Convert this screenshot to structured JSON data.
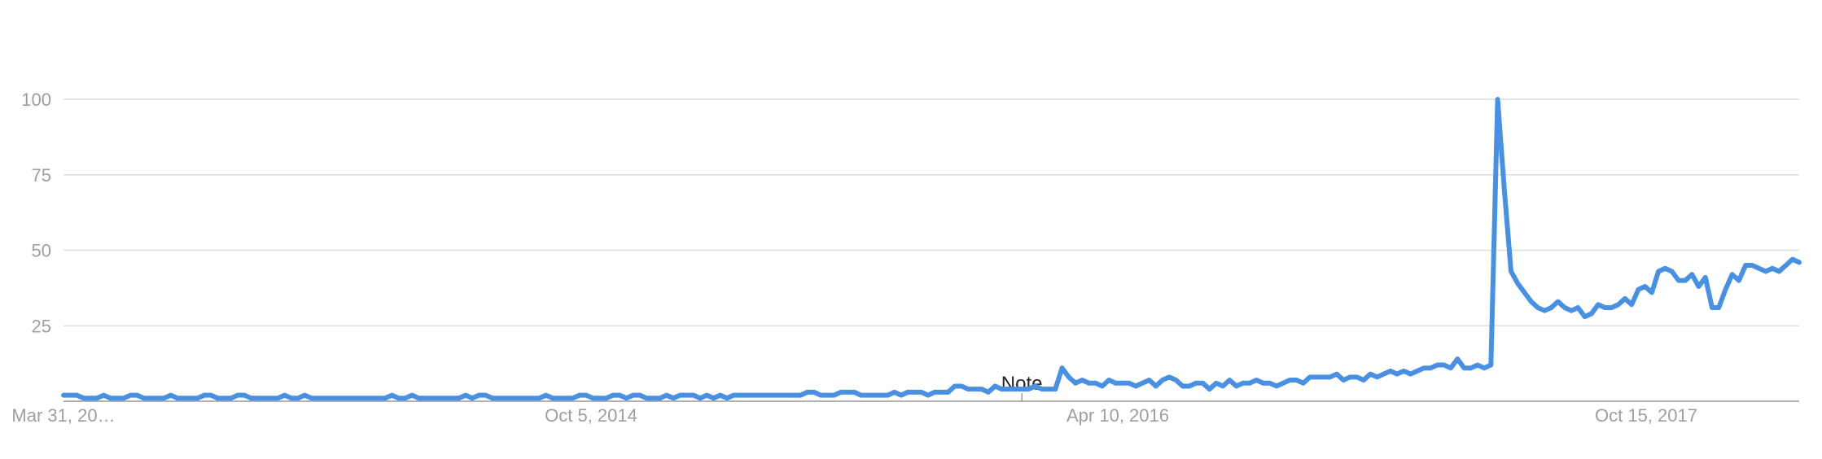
{
  "chart_data": {
    "type": "line",
    "title": "",
    "xlabel": "",
    "ylabel": "",
    "ylim": [
      0,
      100
    ],
    "y_ticks": [
      25,
      50,
      75,
      100
    ],
    "x_tick_labels": [
      "Mar 31, 20…",
      "Oct 5, 2014",
      "Apr 10, 2016",
      "Oct 15, 2017"
    ],
    "grid": true,
    "legend": "none",
    "series_color": "#4a90e2",
    "annotations": [
      {
        "label": "Note",
        "index": 143
      }
    ],
    "series": [
      {
        "values": [
          2,
          2,
          2,
          1,
          1,
          1,
          2,
          1,
          1,
          1,
          2,
          2,
          1,
          1,
          1,
          1,
          2,
          1,
          1,
          1,
          1,
          2,
          2,
          1,
          1,
          1,
          2,
          2,
          1,
          1,
          1,
          1,
          1,
          2,
          1,
          1,
          2,
          1,
          1,
          1,
          1,
          1,
          1,
          1,
          1,
          1,
          1,
          1,
          1,
          2,
          1,
          1,
          2,
          1,
          1,
          1,
          1,
          1,
          1,
          1,
          2,
          1,
          2,
          2,
          1,
          1,
          1,
          1,
          1,
          1,
          1,
          1,
          2,
          1,
          1,
          1,
          1,
          2,
          2,
          1,
          1,
          1,
          2,
          2,
          1,
          2,
          2,
          1,
          1,
          1,
          2,
          1,
          2,
          2,
          2,
          1,
          2,
          1,
          2,
          1,
          2,
          2,
          2,
          2,
          2,
          2,
          2,
          2,
          2,
          2,
          2,
          3,
          3,
          2,
          2,
          2,
          3,
          3,
          3,
          2,
          2,
          2,
          2,
          2,
          3,
          2,
          3,
          3,
          3,
          2,
          3,
          3,
          3,
          5,
          5,
          4,
          4,
          4,
          3,
          5,
          4,
          4,
          4,
          4,
          4,
          5,
          4,
          4,
          4,
          11,
          8,
          6,
          7,
          6,
          6,
          5,
          7,
          6,
          6,
          6,
          5,
          6,
          7,
          5,
          7,
          8,
          7,
          5,
          5,
          6,
          6,
          4,
          6,
          5,
          7,
          5,
          6,
          6,
          7,
          6,
          6,
          5,
          6,
          7,
          7,
          6,
          8,
          8,
          8,
          8,
          9,
          7,
          8,
          8,
          7,
          9,
          8,
          9,
          10,
          9,
          10,
          9,
          10,
          11,
          11,
          12,
          12,
          11,
          14,
          11,
          11,
          12,
          11,
          12,
          100,
          70,
          43,
          39,
          36,
          33,
          31,
          30,
          31,
          33,
          31,
          30,
          31,
          28,
          29,
          32,
          31,
          31,
          32,
          34,
          32,
          37,
          38,
          36,
          43,
          44,
          43,
          40,
          40,
          42,
          38,
          41,
          31,
          31,
          37,
          42,
          40,
          45,
          45,
          44,
          43,
          44,
          43,
          45,
          47,
          46
        ]
      }
    ]
  }
}
